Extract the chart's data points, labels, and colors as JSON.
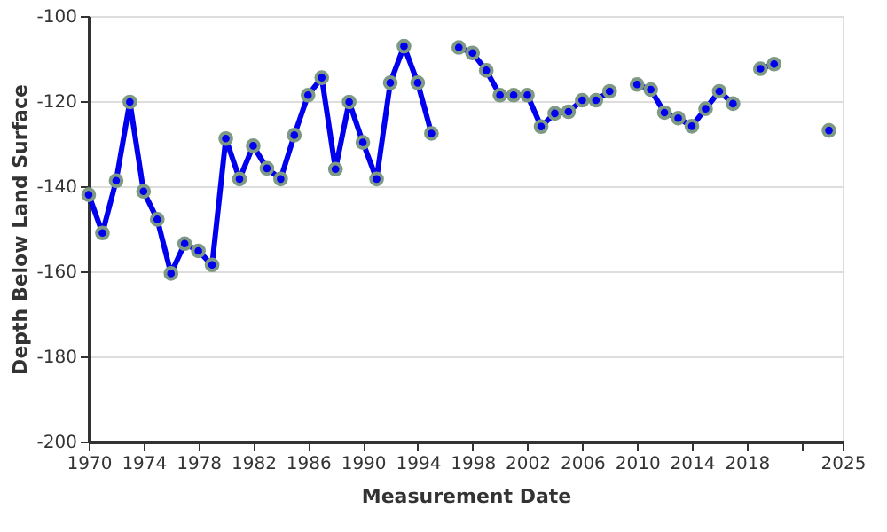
{
  "chart_data": {
    "type": "line",
    "xlabel": "Measurement Date",
    "ylabel": "Depth Below Land Surface",
    "x": [
      1970,
      1971,
      1972,
      1973,
      1974,
      1975,
      1976,
      1977,
      1978,
      1979,
      1980,
      1981,
      1982,
      1983,
      1984,
      1985,
      1986,
      1987,
      1988,
      1989,
      1990,
      1991,
      1992,
      1993,
      1994,
      1995,
      1996,
      1997,
      1998,
      1999,
      2000,
      2001,
      2002,
      2003,
      2004,
      2005,
      2006,
      2007,
      2008,
      2009,
      2010,
      2011,
      2012,
      2013,
      2014,
      2015,
      2016,
      2017,
      2018,
      2019,
      2020,
      2021,
      2022,
      2023,
      2024
    ],
    "series": [
      {
        "color": "#0000ee",
        "values": [
          -142,
          -151,
          -138.7,
          -120.2,
          -141.2,
          -147.8,
          -160.5,
          -153.5,
          -155.2,
          -158.5,
          -128.8,
          -138.3,
          -130.5,
          -135.8,
          -138.3,
          -128,
          -118.6,
          -114.5,
          -136,
          -120.2,
          -129.7,
          -138.3,
          -115.7,
          -107.1,
          -115.7,
          -127.6,
          null,
          -107.4,
          -108.7,
          -112.8,
          -118.6,
          -118.6,
          -118.6,
          -126,
          -122.9,
          -122.5,
          -119.8,
          -119.8,
          -117.7,
          null,
          -116.1,
          -117.3,
          -122.7,
          -124,
          -125.9,
          -121.8,
          -117.7,
          -120.6,
          null,
          -112.4,
          -111.3,
          null,
          null,
          null,
          -126.9
        ]
      }
    ],
    "xlim": [
      1970,
      2025
    ],
    "xticks": [
      1970,
      1974,
      1978,
      1982,
      1986,
      1990,
      1994,
      1998,
      2002,
      2006,
      2010,
      2014,
      2018,
      {
        "value": 2022,
        "label": null
      },
      2025
    ],
    "ylim": [
      -200,
      -100
    ],
    "yticks": [
      -200,
      -180,
      -160,
      -140,
      -120,
      -100
    ],
    "grid": "y",
    "marker": "circle",
    "line_style": "solid"
  }
}
